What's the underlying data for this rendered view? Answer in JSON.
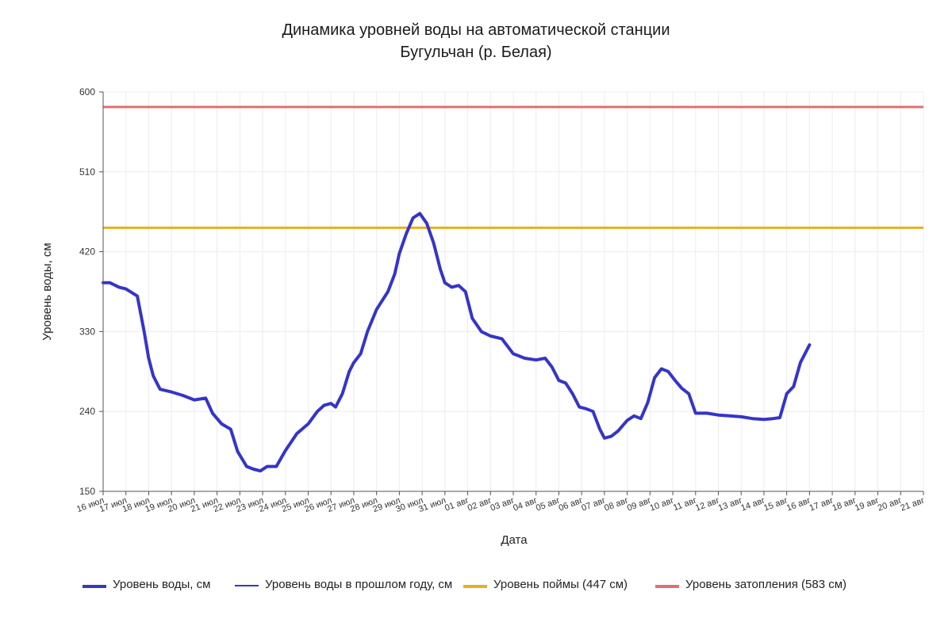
{
  "colors": {
    "current": "#3535c8",
    "last_year": "#3535c8",
    "floodplain": "#e6b020",
    "flooding": "#e07070",
    "grid": "#ececec",
    "axis": "#555555"
  },
  "chart_data": {
    "type": "line",
    "title": "Динамика уровней воды на автоматической станции",
    "subtitle": "Бугульчан (р. Белая)",
    "xlabel": "Дата",
    "ylabel": "Уровень воды, см",
    "ylim": [
      150,
      600
    ],
    "yticks": [
      "150",
      "240",
      "330",
      "420",
      "510",
      "600"
    ],
    "xticks": [
      "16 июл",
      "17 июл",
      "18 июл",
      "19 июл",
      "20 июл",
      "21 июл",
      "22 июл",
      "23 июл",
      "24 июл",
      "25 июл",
      "26 июл",
      "27 июл",
      "28 июл",
      "29 июл",
      "30 июл",
      "31 июл",
      "01 авг",
      "02 авг",
      "03 авг",
      "04 авг",
      "05 авг",
      "06 авг",
      "07 авг",
      "08 авг",
      "09 авг",
      "10 авг",
      "11 авг",
      "12 авг",
      "13 авг",
      "14 авг",
      "15 авг",
      "16 авг",
      "17 авг",
      "18 авг",
      "19 авг",
      "20 авг",
      "21 авг"
    ],
    "grid": true,
    "legend_position": "bottom",
    "series": [
      {
        "name": "Уровень воды, см",
        "x": [
          0,
          0.3,
          0.7,
          1.0,
          1.5,
          1.8,
          2.0,
          2.2,
          2.5,
          3.0,
          3.5,
          4.0,
          4.5,
          4.8,
          5.2,
          5.6,
          5.9,
          6.3,
          6.6,
          6.9,
          7.2,
          7.6,
          8.0,
          8.5,
          9.0,
          9.4,
          9.7,
          10.0,
          10.2,
          10.5,
          10.8,
          11.0,
          11.3,
          11.6,
          12.0,
          12.5,
          12.8,
          13.0,
          13.3,
          13.6,
          13.9,
          14.2,
          14.5,
          14.8,
          15.0,
          15.3,
          15.6,
          15.9,
          16.2,
          16.6,
          17.0,
          17.5,
          18.0,
          18.5,
          19.0,
          19.4,
          19.7,
          20.0,
          20.3,
          20.6,
          20.9,
          21.2,
          21.5,
          21.8,
          22.0,
          22.3,
          22.6,
          23.0,
          23.3,
          23.6,
          23.9,
          24.2,
          24.5,
          24.8,
          25.1,
          25.4,
          25.7,
          26.0,
          26.5,
          27.0,
          27.5,
          28.0,
          28.5,
          29.0,
          29.4,
          29.7,
          30.0,
          30.3,
          30.6,
          31.0
        ],
        "y": [
          385,
          385,
          380,
          378,
          370,
          330,
          300,
          280,
          265,
          262,
          258,
          253,
          255,
          238,
          226,
          220,
          195,
          178,
          175,
          173,
          178,
          178,
          196,
          215,
          226,
          240,
          247,
          249,
          245,
          260,
          285,
          295,
          305,
          330,
          355,
          375,
          395,
          418,
          440,
          458,
          463,
          452,
          430,
          400,
          385,
          380,
          382,
          375,
          345,
          330,
          325,
          322,
          305,
          300,
          298,
          300,
          290,
          275,
          272,
          260,
          245,
          243,
          240,
          220,
          210,
          212,
          218,
          230,
          235,
          232,
          250,
          278,
          288,
          285,
          275,
          266,
          260,
          238,
          238,
          236,
          235,
          234,
          232,
          231,
          232,
          233,
          260,
          268,
          295,
          315
        ]
      },
      {
        "name": "Уровень воды в прошлом году, см",
        "x": [],
        "y": []
      },
      {
        "name": "Уровень поймы (447 см)",
        "x": [
          0,
          36
        ],
        "y": [
          447,
          447
        ]
      },
      {
        "name": "Уровень затопления (583 см)",
        "x": [
          0,
          36
        ],
        "y": [
          583,
          583
        ]
      }
    ]
  }
}
